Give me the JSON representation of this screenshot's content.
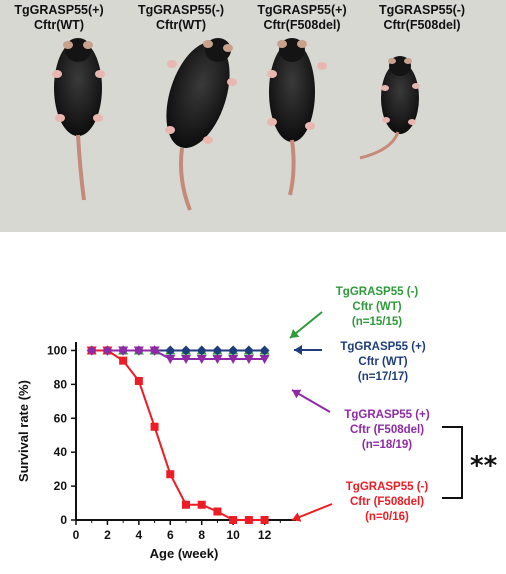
{
  "photo_labels": [
    {
      "line1": "TgGRASP55(+)",
      "line2": "Cftr(WT)"
    },
    {
      "line1": "TgGRASP55(-)",
      "line2": "Cftr(WT)"
    },
    {
      "line1": "TgGRASP55(+)",
      "line2": "Cftr(F508del)"
    },
    {
      "line1": "TgGRASP55(-)",
      "line2": "Cftr(F508del)"
    }
  ],
  "chart_data": {
    "type": "line",
    "title": "",
    "xlabel": "Age (week)",
    "ylabel": "Survival rate (%)",
    "xlim": [
      0,
      14
    ],
    "ylim": [
      0,
      105
    ],
    "x_ticks": [
      "0",
      "2",
      "4",
      "6",
      "8",
      "10",
      "12"
    ],
    "y_ticks": [
      "0",
      "20",
      "40",
      "60",
      "80",
      "100"
    ],
    "grid": false,
    "series": [
      {
        "group": "minus_wt",
        "color": "#2e9a3a",
        "marker": "triangle-up",
        "x": [
          1,
          2,
          3,
          4,
          5,
          6,
          7,
          8,
          9,
          10,
          11,
          12
        ],
        "y": [
          100,
          100,
          100,
          100,
          100,
          100,
          100,
          100,
          100,
          100,
          100,
          100
        ]
      },
      {
        "group": "plus_wt",
        "color": "#1f3d7a",
        "marker": "diamond",
        "x": [
          1,
          2,
          3,
          4,
          5,
          6,
          7,
          8,
          9,
          10,
          11,
          12
        ],
        "y": [
          100,
          100,
          100,
          100,
          100,
          100,
          100,
          100,
          100,
          100,
          100,
          100
        ]
      },
      {
        "group": "plus_f508",
        "color": "#8e2aa6",
        "marker": "triangle-down",
        "x": [
          1,
          2,
          3,
          4,
          5,
          6,
          7,
          8,
          9,
          10,
          11,
          12
        ],
        "y": [
          100,
          100,
          100,
          100,
          100,
          95,
          95,
          95,
          95,
          95,
          95,
          95
        ]
      },
      {
        "group": "minus_f508",
        "color": "#ee1c24",
        "marker": "square",
        "x": [
          1,
          2,
          3,
          4,
          5,
          6,
          7,
          8,
          9,
          10,
          11,
          12
        ],
        "y": [
          100,
          100,
          94,
          82,
          55,
          27,
          9,
          9,
          5,
          0,
          0,
          0
        ]
      }
    ],
    "legend": [
      {
        "group": "minus_wt",
        "color": "#2e9a3a",
        "lines": [
          "TgGRASP55 (-)",
          "Cftr (WT)",
          "(n=15/15)"
        ]
      },
      {
        "group": "plus_wt",
        "color": "#1f3d7a",
        "lines": [
          "TgGRASP55 (+)",
          "Cftr (WT)",
          "(n=17/17)"
        ]
      },
      {
        "group": "plus_f508",
        "color": "#8e2aa6",
        "lines": [
          "TgGRASP55 (+)",
          "Cftr (F508del)",
          "(n=18/19)"
        ]
      },
      {
        "group": "minus_f508",
        "color": "#ee1c24",
        "lines": [
          "TgGRASP55 (-)",
          "Cftr (F508del)",
          "(n=0/16)"
        ]
      }
    ],
    "significance": "**"
  }
}
